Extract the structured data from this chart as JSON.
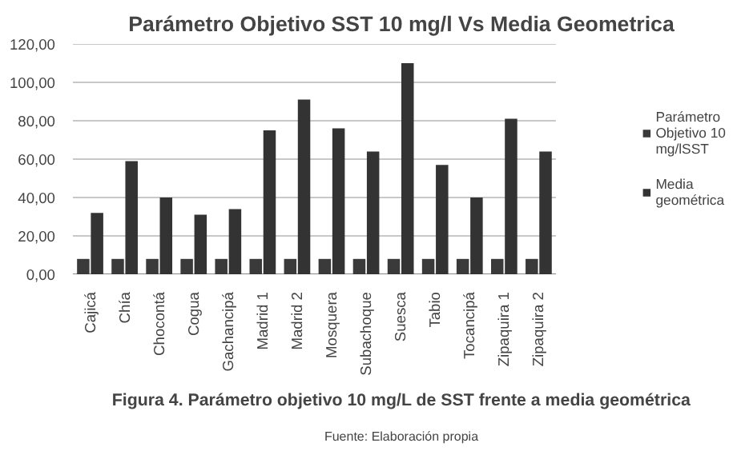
{
  "chart_data": {
    "type": "bar",
    "title": "Parámetro Objetivo SST 10 mg/l Vs Media Geometrica",
    "categories": [
      "Cajicá",
      "Chía",
      "Chocontá",
      "Cogua",
      "Gachancipá",
      "Madrid 1",
      "Madrid 2",
      "Mosquera",
      "Subachoque",
      "Suesca",
      "Tabio",
      "Tocancipá",
      "Zipaquira 1",
      "Zipaquira 2"
    ],
    "series": [
      {
        "name": "Parámetro Objetivo 10 mg/lSST",
        "color": "#3a3a3a",
        "values": [
          8,
          8,
          8,
          8,
          8,
          8,
          8,
          8,
          8,
          8,
          8,
          8,
          8,
          8
        ]
      },
      {
        "name": "Media geométrica",
        "color": "#333333",
        "values": [
          32,
          59,
          40,
          31,
          34,
          75,
          91,
          76,
          64,
          110,
          57,
          40,
          81,
          64
        ]
      }
    ],
    "ylim": [
      0,
      120
    ],
    "yticks": [
      {
        "value": 0,
        "label": "0,00"
      },
      {
        "value": 20,
        "label": "20,00"
      },
      {
        "value": 40,
        "label": "40,00"
      },
      {
        "value": 60,
        "label": "60,00"
      },
      {
        "value": 80,
        "label": "80,00"
      },
      {
        "value": 100,
        "label": "100,00"
      },
      {
        "value": 120,
        "label": "120,00"
      }
    ],
    "grid": "y",
    "legend": "right",
    "annotations": [
      "Figura 4. Parámetro objetivo 10 mg/L de SST frente a media geométrica",
      "Fuente: Elaboración propia"
    ]
  }
}
